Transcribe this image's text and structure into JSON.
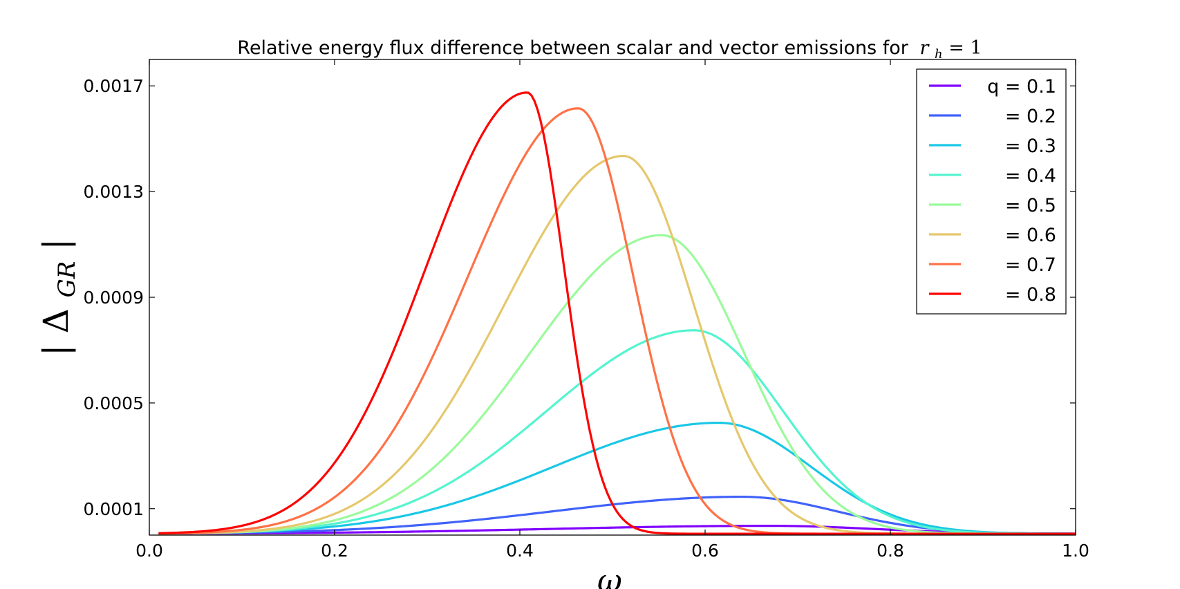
{
  "chart_data": {
    "type": "line",
    "title": "Relative energy flux difference between scalar and vector emissions for",
    "title_math": {
      "var": "r",
      "sub": "h",
      "rest": " = 1"
    },
    "xlabel": "ω",
    "ylabel": {
      "bar": "|",
      "symbol": "Δ",
      "sub": "GR"
    },
    "xlim": [
      0.0,
      1.0
    ],
    "ylim": [
      0.0,
      0.0018
    ],
    "xticks": [
      {
        "value": 0.0,
        "label": "0.0"
      },
      {
        "value": 0.2,
        "label": "0.2"
      },
      {
        "value": 0.4,
        "label": "0.4"
      },
      {
        "value": 0.6,
        "label": "0.6"
      },
      {
        "value": 0.8,
        "label": "0.8"
      },
      {
        "value": 1.0,
        "label": "1.0"
      }
    ],
    "yticks": [
      {
        "value": 0.0001,
        "label": "0.0001"
      },
      {
        "value": 0.0005,
        "label": "0.0005"
      },
      {
        "value": 0.0009,
        "label": "0.0009"
      },
      {
        "value": 0.0013,
        "label": "0.0013"
      },
      {
        "value": 0.0017,
        "label": "0.0017"
      }
    ],
    "legend_position": "top-right",
    "grid": false,
    "series": [
      {
        "name": "q = 0.1",
        "color": "#8000ff",
        "peak_x": 0.67,
        "peak_y": 3e-05,
        "width_left": 0.36,
        "width_right": 0.17
      },
      {
        "name": " = 0.2",
        "color": "#4062fa",
        "peak_x": 0.64,
        "peak_y": 0.00014,
        "width_left": 0.31,
        "width_right": 0.155
      },
      {
        "name": " = 0.3",
        "color": "#1ac7e6",
        "peak_x": 0.615,
        "peak_y": 0.00042,
        "width_left": 0.27,
        "width_right": 0.15
      },
      {
        "name": " = 0.4",
        "color": "#54f4cf",
        "peak_x": 0.588,
        "peak_y": 0.00077,
        "width_left": 0.24,
        "width_right": 0.145
      },
      {
        "name": " = 0.5",
        "color": "#9bfa9c",
        "peak_x": 0.553,
        "peak_y": 0.00113,
        "width_left": 0.215,
        "width_right": 0.135
      },
      {
        "name": " = 0.6",
        "color": "#e5c86d",
        "peak_x": 0.512,
        "peak_y": 0.00143,
        "width_left": 0.195,
        "width_right": 0.115
      },
      {
        "name": " = 0.7",
        "color": "#ff7146",
        "peak_x": 0.463,
        "peak_y": 0.00161,
        "width_left": 0.18,
        "width_right": 0.09
      },
      {
        "name": " = 0.8",
        "color": "#ff0000",
        "peak_x": 0.408,
        "peak_y": 0.00167,
        "width_left": 0.165,
        "width_right": 0.06
      }
    ]
  }
}
